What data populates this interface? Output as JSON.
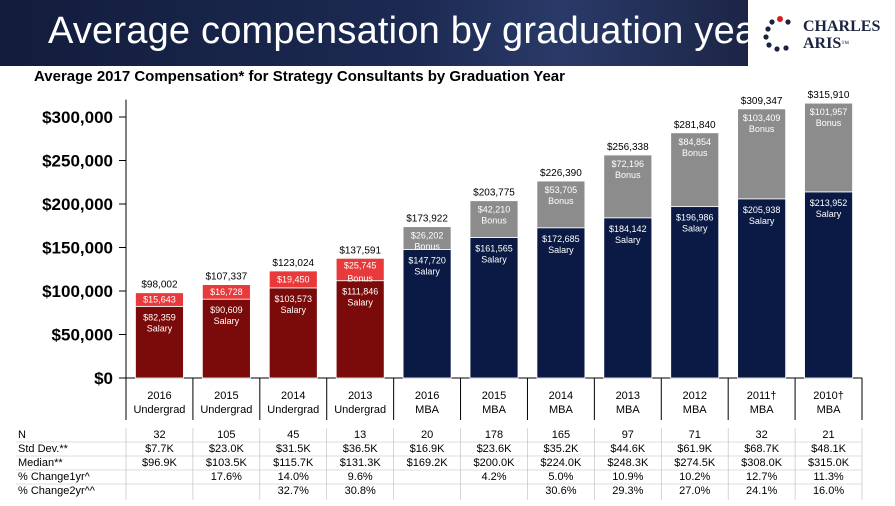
{
  "header": {
    "title": "Average compensation by graduation year",
    "logo_line1": "CHARLES",
    "logo_line2": "ARIS",
    "logo_mark": "™"
  },
  "chart_data": {
    "type": "bar",
    "stacked": true,
    "title": "Average 2017 Compensation* for Strategy Consultants by Graduation Year",
    "yticks": [
      "$0",
      "$50,000",
      "$100,000",
      "$150,000",
      "$200,000",
      "$250,000",
      "$300,000"
    ],
    "ylim": [
      0,
      330000
    ],
    "categories": [
      [
        "2016",
        "Undergrad"
      ],
      [
        "2015",
        "Undergrad"
      ],
      [
        "2014",
        "Undergrad"
      ],
      [
        "2013",
        "Undergrad"
      ],
      [
        "2016",
        "MBA"
      ],
      [
        "2015",
        "MBA"
      ],
      [
        "2014",
        "MBA"
      ],
      [
        "2013",
        "MBA"
      ],
      [
        "2012",
        "MBA"
      ],
      [
        "2011†",
        "MBA"
      ],
      [
        "2010†",
        "MBA"
      ]
    ],
    "group": [
      "undergrad",
      "undergrad",
      "undergrad",
      "undergrad",
      "mba",
      "mba",
      "mba",
      "mba",
      "mba",
      "mba",
      "mba"
    ],
    "salary": [
      82359,
      90609,
      103573,
      111846,
      147720,
      161565,
      172685,
      184142,
      196986,
      205938,
      213952
    ],
    "bonus": [
      15643,
      16728,
      19450,
      25745,
      26202,
      42210,
      53705,
      72196,
      84854,
      103409,
      101957
    ],
    "totals": [
      "$98,002",
      "$107,337",
      "$123,024",
      "$137,591",
      "$173,922",
      "$203,775",
      "$226,390",
      "$256,338",
      "$281,840",
      "$309,347",
      "$315,910"
    ],
    "salary_labels": [
      "$82,359",
      "$90,609",
      "$103,573",
      "$111,846",
      "$147,720",
      "$161,565",
      "$172,685",
      "$184,142",
      "$196,986",
      "$205,938",
      "$213,952"
    ],
    "bonus_labels": [
      "$15,643",
      "$16,728",
      "$19,450",
      "$25,745",
      "$26,202",
      "$42,210",
      "$53,705",
      "$72,196",
      "$84,854",
      "$103,409",
      "$101,957"
    ],
    "salary_word": "Salary",
    "bonus_word": "Bonus",
    "colors": {
      "undergrad_salary": "#7b0a0a",
      "undergrad_bonus": "#e83a3a",
      "mba_salary": "#0a1a44",
      "mba_bonus": "#8c8c8c"
    },
    "table": {
      "row_labels": [
        "N",
        "Std Dev.**",
        "Median**",
        "% Change1yr^",
        "% Change2yr^^"
      ],
      "rows": [
        [
          "32",
          "105",
          "45",
          "13",
          "20",
          "178",
          "165",
          "97",
          "71",
          "32",
          "21"
        ],
        [
          "$7.7K",
          "$23.0K",
          "$31.5K",
          "$36.5K",
          "$16.9K",
          "$23.6K",
          "$35.2K",
          "$44.6K",
          "$61.9K",
          "$68.7K",
          "$48.1K"
        ],
        [
          "$96.9K",
          "$103.5K",
          "$115.7K",
          "$131.3K",
          "$169.2K",
          "$200.0K",
          "$224.0K",
          "$248.3K",
          "$274.5K",
          "$308.0K",
          "$315.0K"
        ],
        [
          "",
          "17.6%",
          "14.0%",
          "9.6%",
          "",
          "4.2%",
          "5.0%",
          "10.9%",
          "10.2%",
          "12.7%",
          "11.3%"
        ],
        [
          "",
          "",
          "32.7%",
          "30.8%",
          "",
          "",
          "30.6%",
          "29.3%",
          "27.0%",
          "24.1%",
          "16.0%"
        ]
      ]
    }
  }
}
